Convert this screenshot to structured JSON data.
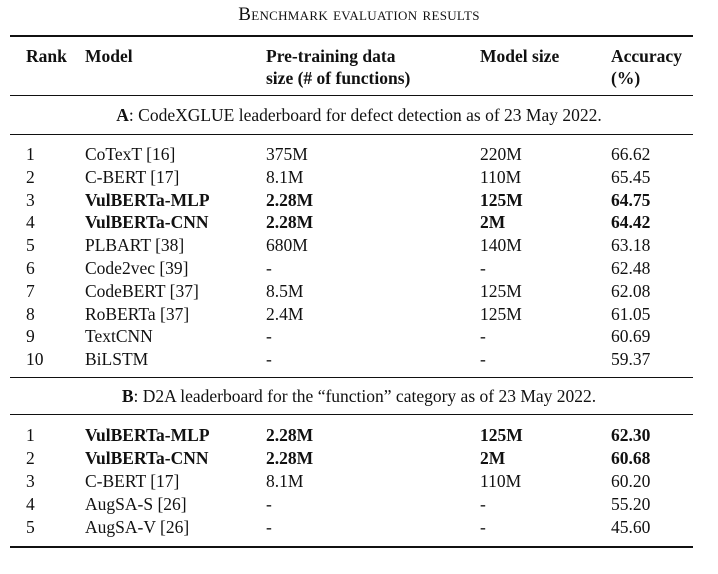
{
  "caption": "Benchmark evaluation results",
  "header": {
    "rank": "Rank",
    "model": "Model",
    "pretrain_line1": "Pre-training data",
    "pretrain_line2": "size (# of functions)",
    "model_size": "Model size",
    "accuracy_line1": "Accuracy",
    "accuracy_line2": "(%)"
  },
  "section_a": {
    "letter": "A",
    "title": ": CodeXGLUE leaderboard for defect detection as of 23 May 2022.",
    "rows": [
      {
        "rank": "1",
        "model": "CoTexT [16]",
        "pretrain": "375M",
        "size": "220M",
        "accuracy": "66.62",
        "bold": false
      },
      {
        "rank": "2",
        "model": "C-BERT [17]",
        "pretrain": "8.1M",
        "size": "110M",
        "accuracy": "65.45",
        "bold": false
      },
      {
        "rank": "3",
        "model": "VulBERTa-MLP",
        "pretrain": "2.28M",
        "size": "125M",
        "accuracy": "64.75",
        "bold": true
      },
      {
        "rank": "4",
        "model": "VulBERTa-CNN",
        "pretrain": "2.28M",
        "size": "2M",
        "accuracy": "64.42",
        "bold": true
      },
      {
        "rank": "5",
        "model": "PLBART [38]",
        "pretrain": "680M",
        "size": "140M",
        "accuracy": "63.18",
        "bold": false
      },
      {
        "rank": "6",
        "model": "Code2vec [39]",
        "pretrain": "-",
        "size": "-",
        "accuracy": "62.48",
        "bold": false
      },
      {
        "rank": "7",
        "model": "CodeBERT [37]",
        "pretrain": "8.5M",
        "size": "125M",
        "accuracy": "62.08",
        "bold": false
      },
      {
        "rank": "8",
        "model": "RoBERTa [37]",
        "pretrain": "2.4M",
        "size": "125M",
        "accuracy": "61.05",
        "bold": false
      },
      {
        "rank": "9",
        "model": "TextCNN",
        "pretrain": "-",
        "size": "-",
        "accuracy": "60.69",
        "bold": false
      },
      {
        "rank": "10",
        "model": "BiLSTM",
        "pretrain": "-",
        "size": "-",
        "accuracy": "59.37",
        "bold": false
      }
    ]
  },
  "section_b": {
    "letter": "B",
    "title": ": D2A leaderboard for the “function” category as of 23 May 2022.",
    "rows": [
      {
        "rank": "1",
        "model": "VulBERTa-MLP",
        "pretrain": "2.28M",
        "size": "125M",
        "accuracy": "62.30",
        "bold": true
      },
      {
        "rank": "2",
        "model": "VulBERTa-CNN",
        "pretrain": "2.28M",
        "size": "2M",
        "accuracy": "60.68",
        "bold": true
      },
      {
        "rank": "3",
        "model": "C-BERT [17]",
        "pretrain": "8.1M",
        "size": "110M",
        "accuracy": "60.20",
        "bold": false
      },
      {
        "rank": "4",
        "model": "AugSA-S [26]",
        "pretrain": "-",
        "size": "-",
        "accuracy": "55.20",
        "bold": false
      },
      {
        "rank": "5",
        "model": "AugSA-V [26]",
        "pretrain": "-",
        "size": "-",
        "accuracy": "45.60",
        "bold": false
      }
    ]
  }
}
